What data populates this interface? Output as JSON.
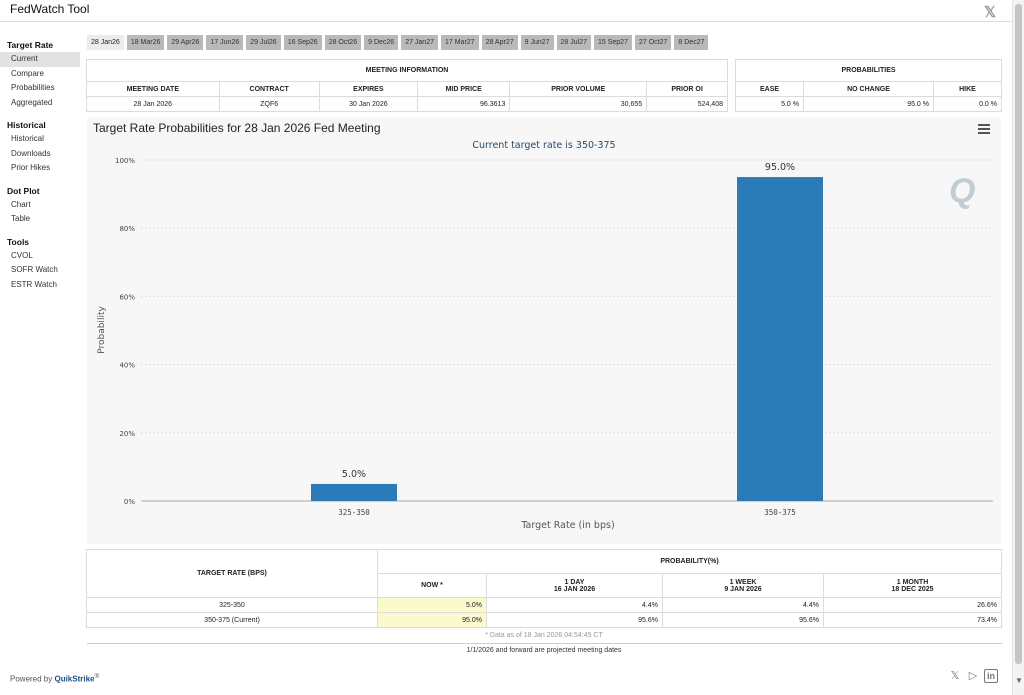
{
  "app": {
    "title": "FedWatch Tool",
    "x_label": "𝕏"
  },
  "sidebar": {
    "sections": [
      {
        "heading": "Target Rate",
        "items": [
          "Current",
          "Compare",
          "Probabilities",
          "Aggregated"
        ]
      },
      {
        "heading": "Historical",
        "items": [
          "Historical",
          "Downloads",
          "Prior Hikes"
        ]
      },
      {
        "heading": "Dot Plot",
        "items": [
          "Chart",
          "Table"
        ]
      },
      {
        "heading": "Tools",
        "items": [
          "CVOL",
          "SOFR Watch",
          "ESTR Watch"
        ]
      }
    ],
    "active_item": "Current"
  },
  "tabs": [
    "28 Jan26",
    "18 Mar26",
    "29 Apr26",
    "17 Jun26",
    "29 Jul26",
    "16 Sep26",
    "28 Oct26",
    "9 Dec26",
    "27 Jan27",
    "17 Mar27",
    "28 Apr27",
    "9 Jun27",
    "28 Jul27",
    "15 Sep27",
    "27 Oct27",
    "8 Dec27"
  ],
  "meeting_info": {
    "title": "MEETING INFORMATION",
    "headers": [
      "MEETING DATE",
      "CONTRACT",
      "EXPIRES",
      "MID PRICE",
      "PRIOR VOLUME",
      "PRIOR OI"
    ],
    "row": [
      "28 Jan 2026",
      "ZQF6",
      "30 Jan 2026",
      "96.3613",
      "30,655",
      "524,408"
    ]
  },
  "probabilities": {
    "title": "PROBABILITIES",
    "headers": [
      "EASE",
      "NO CHANGE",
      "HIKE"
    ],
    "row": [
      "5.0 %",
      "95.0 %",
      "0.0 %"
    ]
  },
  "chart_data": {
    "type": "bar",
    "title": "Target Rate Probabilities for 28 Jan 2026 Fed Meeting",
    "subtitle": "Current target rate is 350-375",
    "xlabel": "Target Rate (in bps)",
    "ylabel": "Probability",
    "categories": [
      "325-350",
      "350-375"
    ],
    "values": [
      5.0,
      95.0
    ],
    "data_labels": [
      "5.0%",
      "95.0%"
    ],
    "ylim": [
      0,
      100
    ],
    "yticks": [
      0,
      20,
      40,
      60,
      80,
      100
    ],
    "ytick_labels": [
      "0%",
      "20%",
      "40%",
      "60%",
      "80%",
      "100%"
    ],
    "grid": true,
    "bar_color": "#2b7bb9",
    "legend": "none"
  },
  "rate_table": {
    "col1_header": "TARGET RATE (BPS)",
    "prob_header": "PROBABILITY(%)",
    "sub_headers": [
      {
        "line1": "NOW *",
        "line2": ""
      },
      {
        "line1": "1 DAY",
        "line2": "16 JAN 2026"
      },
      {
        "line1": "1 WEEK",
        "line2": "9 JAN 2026"
      },
      {
        "line1": "1 MONTH",
        "line2": "18 DEC 2025"
      }
    ],
    "rows": [
      {
        "rate": "325-350",
        "values": [
          "5.0%",
          "4.4%",
          "4.4%",
          "26.6%"
        ]
      },
      {
        "rate": "350-375 (Current)",
        "values": [
          "95.0%",
          "95.6%",
          "95.6%",
          "73.4%"
        ]
      }
    ],
    "note_data": "* Data as of 18 Jan 2026 04:54:45 CT",
    "note_projected": "1/1/2026 and forward are projected meeting dates"
  },
  "footer": {
    "powered_prefix": "Powered by ",
    "powered_brand": "QuikStrike",
    "reg": "®"
  },
  "icons": {
    "menu": "hamburger-menu-icon",
    "x": "x-logo-icon",
    "youtube": "youtube-icon",
    "linkedin": "linkedin-icon"
  },
  "colors": {
    "accent": "#2b7bb9",
    "now_highlight": "#fbfacd",
    "tab_bg": "#b9b9b9"
  }
}
